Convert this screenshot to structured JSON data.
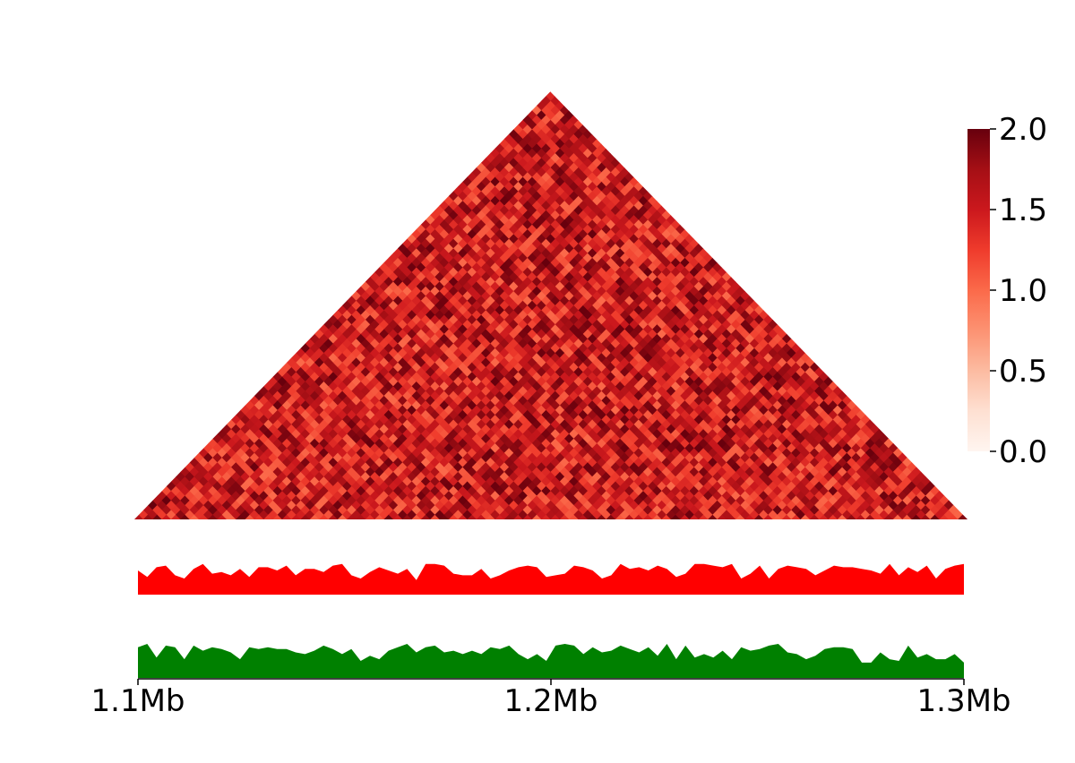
{
  "chart_data": [
    {
      "type": "heatmap",
      "description_role": "triangular contact matrix",
      "grid_size": 90,
      "colormap": "Reds",
      "color_range": [
        0.0,
        2.0
      ],
      "value_distribution": {
        "min": 1.0,
        "max": 2.0
      },
      "colorbar": {
        "ticks": [
          0.0,
          0.5,
          1.0,
          1.5,
          2.0
        ],
        "tick_labels": [
          "0.0",
          "0.5",
          "1.0",
          "1.5",
          "2.0"
        ]
      }
    },
    {
      "type": "area",
      "color": "#ff0000",
      "values": [
        0.75,
        0.55,
        0.85,
        0.9,
        0.6,
        0.5,
        0.8,
        0.95,
        0.65,
        0.7,
        0.6,
        0.8,
        0.55,
        0.85,
        0.85,
        0.75,
        0.9,
        0.6,
        0.8,
        0.8,
        0.7,
        0.9,
        0.95,
        0.6,
        0.5,
        0.7,
        0.85,
        0.75,
        0.65,
        0.8,
        0.45,
        0.95,
        0.95,
        0.9,
        0.65,
        0.6,
        0.6,
        0.8,
        0.5,
        0.6,
        0.75,
        0.85,
        0.9,
        0.85,
        0.55,
        0.6,
        0.65,
        0.9,
        0.85,
        0.75,
        0.5,
        0.6,
        0.95,
        0.8,
        0.85,
        0.75,
        0.9,
        0.8,
        0.55,
        0.65,
        0.95,
        0.95,
        0.9,
        0.85,
        0.95,
        0.5,
        0.65,
        0.9,
        0.5,
        0.8,
        0.9,
        0.85,
        0.8,
        0.6,
        0.75,
        0.9,
        0.85,
        0.85,
        0.8,
        0.75,
        0.65,
        0.95,
        0.6,
        0.85,
        0.7,
        0.9,
        0.5,
        0.8,
        0.9,
        0.95
      ],
      "ylim": [
        0,
        1
      ]
    },
    {
      "type": "area",
      "color": "#008000",
      "values": [
        0.9,
        1.0,
        0.6,
        0.95,
        0.9,
        0.55,
        0.95,
        0.8,
        0.9,
        0.85,
        0.75,
        0.55,
        0.9,
        0.85,
        0.9,
        0.85,
        0.85,
        0.75,
        0.7,
        0.8,
        0.95,
        0.85,
        0.7,
        0.85,
        0.5,
        0.65,
        0.55,
        0.8,
        0.9,
        1.0,
        0.75,
        0.9,
        0.95,
        0.75,
        0.8,
        0.7,
        0.8,
        0.7,
        0.9,
        0.85,
        0.95,
        0.7,
        0.55,
        0.7,
        0.5,
        0.95,
        1.0,
        0.95,
        0.7,
        0.9,
        0.75,
        0.8,
        0.95,
        0.85,
        0.75,
        0.9,
        0.65,
        1.0,
        0.55,
        0.95,
        0.6,
        0.7,
        0.6,
        0.8,
        0.55,
        0.9,
        0.8,
        0.85,
        0.95,
        1.0,
        0.75,
        0.7,
        0.55,
        0.65,
        0.85,
        0.9,
        0.9,
        0.85,
        0.45,
        0.45,
        0.75,
        0.55,
        0.5,
        0.95,
        0.6,
        0.7,
        0.55,
        0.55,
        0.7,
        0.45
      ],
      "ylim": [
        0,
        1
      ]
    }
  ],
  "xaxis": {
    "ticks": [
      1.1,
      1.2,
      1.3
    ],
    "tick_labels": [
      "1.1Mb",
      "1.2Mb",
      "1.3Mb"
    ],
    "range": [
      1.1,
      1.3
    ]
  }
}
